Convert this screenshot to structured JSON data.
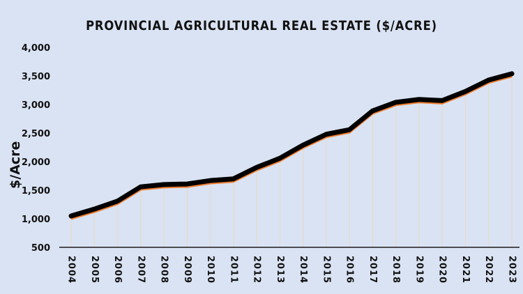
{
  "chart_data": {
    "type": "line",
    "title": "PROVINCIAL AGRICULTURAL REAL ESTATE ($/ACRE)",
    "xlabel": "",
    "ylabel": "$/Acre",
    "ylim": [
      500,
      4000
    ],
    "yticks": [
      "500",
      "1,000",
      "1,500",
      "2,000",
      "2,500",
      "3,000",
      "3,500",
      "4,000"
    ],
    "ytick_values": [
      500,
      1000,
      1500,
      2000,
      2500,
      3000,
      3500,
      4000
    ],
    "grid": "vertical drop lines at each category",
    "legend": "none",
    "categories": [
      "2004",
      "2005",
      "2006",
      "2007",
      "2008",
      "2009",
      "2010",
      "2011",
      "2012",
      "2013",
      "2014",
      "2015",
      "2016",
      "2017",
      "2018",
      "2019",
      "2020",
      "2021",
      "2022",
      "2023"
    ],
    "series": [
      {
        "name": "$/Acre",
        "color": "#ed7d31",
        "shadow_color": "#000000",
        "values": [
          1000,
          1120,
          1260,
          1510,
          1550,
          1560,
          1620,
          1650,
          1850,
          2010,
          2240,
          2430,
          2510,
          2840,
          2990,
          3040,
          3020,
          3180,
          3380,
          3490
        ]
      }
    ]
  },
  "colors": {
    "background": "#dae3f3",
    "line": "#ed7d31",
    "shadow": "#000000",
    "droplines": "#e3dcd3",
    "axis": "#1a1a1a"
  }
}
